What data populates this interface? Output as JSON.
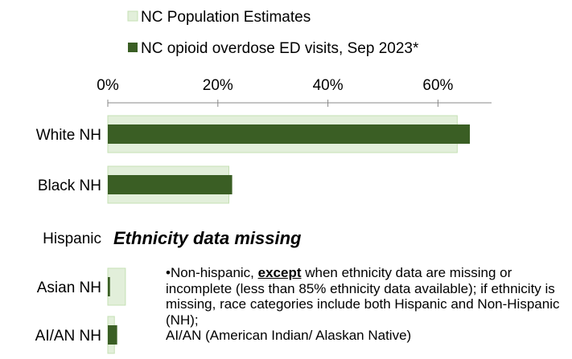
{
  "chart_data": {
    "type": "bar",
    "orientation": "horizontal",
    "categories": [
      "White NH",
      "Black NH",
      "Hispanic",
      "Asian NH",
      "AI/AN NH"
    ],
    "series": [
      {
        "name": "NC Population Estimates",
        "values": [
          63.5,
          22.0,
          null,
          3.2,
          1.2
        ],
        "color": "#e2efda",
        "stroke": "#c5e0b4"
      },
      {
        "name": "NC opioid overdose ED visits, Sep 2023*",
        "values": [
          65.8,
          22.6,
          null,
          0.4,
          1.7
        ],
        "color": "#3a5e24"
      }
    ],
    "xticks": [
      "0%",
      "20%",
      "40%",
      "60%"
    ],
    "xlim": [
      0,
      70
    ],
    "axis_position": "top",
    "legend_position": "top",
    "annotation": "Ethnicity data missing"
  },
  "footnote": {
    "part1": "•Non-hispanic, ",
    "emphasis": "except",
    "part2": " when ethnicity data are missing or incomplete (less than 85% ethnicity data available); if ethnicity is missing, race categories include both Hispanic and Non-Hispanic (NH);",
    "line_last": "AI/AN (American Indian/ Alaskan Native)"
  }
}
